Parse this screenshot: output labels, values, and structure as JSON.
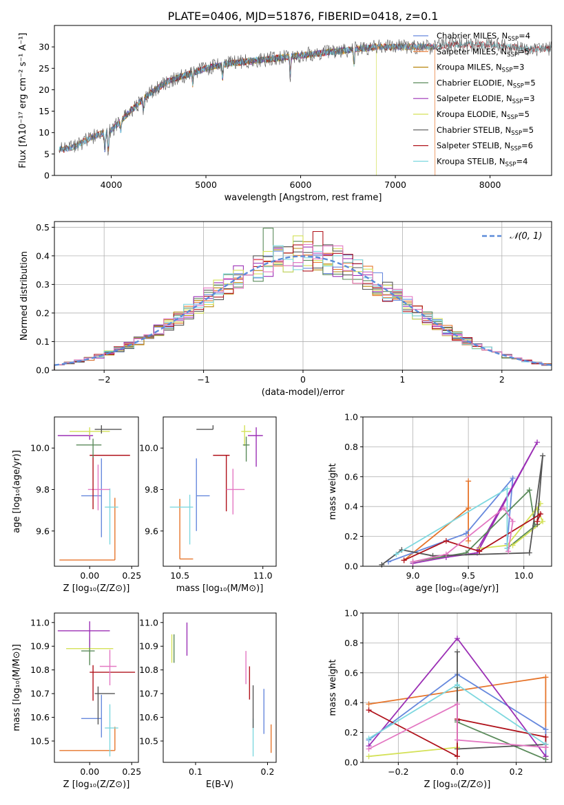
{
  "figure": {
    "title": "PLATE=0406, MJD=51876, FIBERID=0418, z=0.1"
  },
  "colors": {
    "Chabrier MILES": "#6688dd",
    "Salpeter MILES": "#e6742a",
    "Kroupa MILES": "#b8860b",
    "Chabrier ELODIE": "#5a8a5a",
    "Salpeter ELODIE": "#9b2fb5",
    "Kroupa ELODIE": "#d4e157",
    "Chabrier STELIB": "#555555",
    "Salpeter STELIB": "#b0121b",
    "Kroupa STELIB": "#7ed8df",
    "pink": "#e377c2",
    "gauss": "#5b8bd9"
  },
  "chart_data": [
    {
      "type": "line",
      "id": "spectrum",
      "xlabel": "wavelength [Angstrom, rest frame]",
      "ylabel": "Flux [fλ10⁻¹⁷ erg cm⁻² s⁻¹ A⁻¹]",
      "xlim": [
        3400,
        8650
      ],
      "ylim": [
        0,
        35
      ],
      "xticks": [
        4000,
        5000,
        6000,
        7000,
        8000
      ],
      "yticks": [
        0,
        5,
        10,
        15,
        20,
        25,
        30
      ],
      "continuum": {
        "x": [
          3450,
          3600,
          3800,
          4000,
          4200,
          4400,
          4600,
          4800,
          5000,
          5200,
          5400,
          5600,
          5800,
          6000,
          6200,
          6400,
          6600,
          6800,
          7000,
          7200,
          7400,
          7600,
          7800,
          8000,
          8200,
          8400
        ],
        "y": [
          6,
          6.5,
          9,
          10.5,
          15,
          19,
          22,
          23.5,
          25,
          26,
          26.5,
          27,
          27.5,
          28,
          28.5,
          29,
          29.5,
          30,
          30,
          30,
          30,
          30.5,
          30.5,
          30.5,
          30,
          29.5
        ]
      },
      "series": [
        {
          "name": "Chabrier MILES",
          "label": "Chabrier MILES, N",
          "sub": "SSP",
          "count": "=4",
          "range": [
            3450,
            7420
          ]
        },
        {
          "name": "Salpeter MILES",
          "label": "Salpeter MILES, N",
          "sub": "SSP",
          "count": "=5",
          "range": [
            3450,
            7420
          ]
        },
        {
          "name": "Kroupa MILES",
          "label": "Kroupa MILES, N",
          "sub": "SSP",
          "count": "=3",
          "range": [
            3450,
            7420
          ]
        },
        {
          "name": "Chabrier ELODIE",
          "label": "Chabrier ELODIE, N",
          "sub": "SSP",
          "count": "=5",
          "range": [
            3900,
            6800
          ]
        },
        {
          "name": "Salpeter ELODIE",
          "label": "Salpeter ELODIE, N",
          "sub": "SSP",
          "count": "=3",
          "range": [
            3900,
            6800
          ]
        },
        {
          "name": "Kroupa ELODIE",
          "label": "Kroupa ELODIE, N",
          "sub": "SSP",
          "count": "=5",
          "range": [
            3900,
            6800
          ]
        },
        {
          "name": "Chabrier STELIB",
          "label": "Chabrier STELIB, N",
          "sub": "SSP",
          "count": "=5",
          "range": [
            3450,
            8650
          ]
        },
        {
          "name": "Salpeter STELIB",
          "label": "Salpeter STELIB, N",
          "sub": "SSP",
          "count": "=6",
          "range": [
            3450,
            8650
          ]
        },
        {
          "name": "Kroupa STELIB",
          "label": "Kroupa STELIB, N",
          "sub": "SSP",
          "count": "=4",
          "range": [
            3450,
            8650
          ]
        }
      ]
    },
    {
      "type": "histogram",
      "id": "residuals",
      "xlabel": "(data-model)/error",
      "ylabel": "Normed distribution",
      "xlim": [
        -2.5,
        2.5
      ],
      "ylim": [
        0,
        0.52
      ],
      "xticks": [
        -2,
        -1,
        0,
        1,
        2
      ],
      "yticks": [
        0.0,
        0.1,
        0.2,
        0.3,
        0.4,
        0.5
      ],
      "legend": "$\\mathcal{N}(0,1)$",
      "bin_width": 0.1,
      "peaks": {
        "Chabrier ELODIE": [
          -0.35,
          0.497
        ],
        "Salpeter STELIB": [
          0.15,
          0.485
        ],
        "Kroupa ELODIE": [
          -0.05,
          0.47
        ],
        "pink": [
          0.35,
          0.435
        ]
      }
    },
    {
      "type": "errorbar",
      "id": "age_vs_Z",
      "xlabel": "Z [log₁₀(Z/Z⊙)]",
      "ylabel": "age [log₁₀(age/yr)]",
      "xlim": [
        -0.21,
        0.29
      ],
      "ylim": [
        9.43,
        10.15
      ],
      "xticks": [
        0.0,
        0.25
      ],
      "yticks": [
        9.6,
        9.8,
        10.0
      ],
      "points": [
        {
          "c": "Salpeter MILES",
          "x": 0.15,
          "xe": [
            0.33,
            0
          ],
          "y": 9.46,
          "ye": [
            0,
            0.3
          ]
        },
        {
          "c": "Chabrier MILES",
          "x": 0.07,
          "xe": [
            0.12,
            0
          ],
          "y": 9.77,
          "ye": [
            0.2,
            0.18
          ]
        },
        {
          "c": "Kroupa STELIB",
          "x": 0.12,
          "xe": [
            0.03,
            0.05
          ],
          "y": 9.715,
          "ye": [
            0.18,
            0.09
          ]
        },
        {
          "c": "pink",
          "x": 0.05,
          "xe": [
            0.06,
            0.07
          ],
          "y": 9.8,
          "ye": [
            0.1,
            0.12
          ]
        },
        {
          "c": "Salpeter STELIB",
          "x": 0.02,
          "xe": [
            0.02,
            0.22
          ],
          "y": 9.965,
          "ye": [
            0.26,
            0
          ]
        },
        {
          "c": "Chabrier ELODIE",
          "x": 0.02,
          "xe": [
            0.1,
            0.05
          ],
          "y": 10.015,
          "ye": [
            0.06,
            0.03
          ]
        },
        {
          "c": "Salpeter ELODIE",
          "x": 0.0,
          "xe": [
            0.19,
            0.02
          ],
          "y": 10.06,
          "ye": [
            0.02,
            0.02
          ]
        },
        {
          "c": "Kroupa ELODIE",
          "x": 0.0,
          "xe": [
            0.12,
            0.12
          ],
          "y": 10.08,
          "ye": [
            0.02,
            0.02
          ]
        },
        {
          "c": "Chabrier STELIB",
          "x": 0.07,
          "xe": [
            0.04,
            0.12
          ],
          "y": 10.09,
          "ye": [
            0.02,
            0.02
          ]
        }
      ]
    },
    {
      "type": "errorbar",
      "id": "age_vs_mass",
      "xlabel": "mass [log₁₀(M/M⊙)]",
      "xlim": [
        10.4,
        11.08
      ],
      "ylim": [
        9.43,
        10.15
      ],
      "xticks": [
        10.5,
        11.0
      ],
      "yticks": [
        9.6,
        9.8,
        10.0
      ],
      "points": [
        {
          "c": "Salpeter MILES",
          "x": 10.5,
          "xe": [
            0,
            0.08
          ],
          "y": 9.465,
          "ye": [
            0,
            0.29
          ]
        },
        {
          "c": "Kroupa STELIB",
          "x": 10.56,
          "xe": [
            0.12,
            0.02
          ],
          "y": 9.715,
          "ye": [
            0.18,
            0.06
          ]
        },
        {
          "c": "Chabrier MILES",
          "x": 10.6,
          "xe": [
            0,
            0.08
          ],
          "y": 9.77,
          "ye": [
            0.17,
            0.18
          ]
        },
        {
          "c": "Salpeter STELIB",
          "x": 10.78,
          "xe": [
            0.08,
            0.02
          ],
          "y": 9.965,
          "ye": [
            0.27,
            0
          ]
        },
        {
          "c": "pink",
          "x": 10.82,
          "xe": [
            0.04,
            0.07
          ],
          "y": 9.8,
          "ye": [
            0.12,
            0.1
          ]
        },
        {
          "c": "Chabrier STELIB",
          "x": 10.7,
          "xe": [
            0.1,
            0
          ],
          "y": 10.09,
          "ye": [
            0,
            0.02
          ]
        },
        {
          "c": "Kroupa ELODIE",
          "x": 10.89,
          "xe": [
            0.02,
            0.04
          ],
          "y": 10.08,
          "ye": [
            0.07,
            0.03
          ]
        },
        {
          "c": "Chabrier ELODIE",
          "x": 10.9,
          "xe": [
            0.02,
            0.02
          ],
          "y": 10.015,
          "ye": [
            0.08,
            0.04
          ]
        },
        {
          "c": "Salpeter ELODIE",
          "x": 10.96,
          "xe": [
            0.05,
            0.04
          ],
          "y": 10.06,
          "ye": [
            0.15,
            0.04
          ]
        }
      ]
    },
    {
      "type": "line",
      "id": "weight_vs_age",
      "xlabel": "age [log₁₀(age/yr)]",
      "ylabel": "mass weight",
      "xlim": [
        8.55,
        10.25
      ],
      "ylim": [
        0,
        1.0
      ],
      "xticks": [
        9.0,
        9.5,
        10.0
      ],
      "yticks": [
        0.0,
        0.2,
        0.4,
        0.6,
        0.8,
        1.0
      ],
      "series": [
        {
          "c": "Salpeter MILES",
          "x": [
            8.92,
            9.5,
            9.5,
            9.5
          ],
          "y": [
            0.04,
            0.39,
            0.57,
            0.17
          ]
        },
        {
          "c": "Chabrier MILES",
          "x": [
            8.78,
            9.48,
            9.9,
            9.85
          ],
          "y": [
            0.03,
            0.22,
            0.59,
            0.15
          ]
        },
        {
          "c": "Salpeter ELODIE",
          "x": [
            9.0,
            9.3,
            9.58,
            10.12,
            9.58
          ],
          "y": [
            0.02,
            0.06,
            0.09,
            0.83,
            0.11
          ]
        },
        {
          "c": "Chabrier ELODIE",
          "x": [
            9.0,
            9.48,
            10.05,
            10.1,
            9.85
          ],
          "y": [
            0.03,
            0.09,
            0.51,
            0.27,
            0.12
          ]
        },
        {
          "c": "Kroupa ELODIE",
          "x": [
            9.6,
            9.85,
            10.15,
            10.12,
            10.17,
            9.9
          ],
          "y": [
            0.12,
            0.14,
            0.42,
            0.38,
            0.3,
            0.14
          ]
        },
        {
          "c": "Chabrier STELIB",
          "x": [
            8.72,
            8.9,
            9.18,
            10.05,
            10.17,
            10.12
          ],
          "y": [
            0.01,
            0.11,
            0.07,
            0.09,
            0.74,
            0.28
          ]
        },
        {
          "c": "Salpeter STELIB",
          "x": [
            8.92,
            9.3,
            9.6,
            10.15,
            10.12
          ],
          "y": [
            0.04,
            0.17,
            0.1,
            0.35,
            0.3
          ]
        },
        {
          "c": "Kroupa STELIB",
          "x": [
            8.85,
            9.85,
            9.85
          ],
          "y": [
            0.08,
            0.52,
            0.12
          ]
        },
        {
          "c": "pink",
          "x": [
            9.0,
            9.3,
            9.82,
            9.9,
            9.86
          ],
          "y": [
            0.03,
            0.08,
            0.39,
            0.3,
            0.1
          ]
        }
      ]
    },
    {
      "type": "errorbar",
      "id": "mass_vs_Z",
      "xlabel": "Z [log₁₀(Z/Z⊙)]",
      "ylabel": "mass [log₁₀(M/M⊙)]",
      "xlim": [
        -0.21,
        0.29
      ],
      "ylim": [
        10.41,
        11.04
      ],
      "xticks": [
        0.0,
        0.25
      ],
      "yticks": [
        10.5,
        10.6,
        10.7,
        10.8,
        10.9,
        11.0
      ],
      "points": [
        {
          "c": "Salpeter MILES",
          "x": 0.15,
          "xe": [
            0.33,
            0
          ],
          "y": 10.46,
          "ye": [
            0,
            0.1
          ]
        },
        {
          "c": "Chabrier MILES",
          "x": 0.07,
          "xe": [
            0.12,
            0
          ],
          "y": 10.595,
          "ye": [
            0.08,
            0.1
          ]
        },
        {
          "c": "Kroupa STELIB",
          "x": 0.12,
          "xe": [
            0.03,
            0.05
          ],
          "y": 10.555,
          "ye": [
            0.12,
            0.1
          ]
        },
        {
          "c": "Chabrier STELIB",
          "x": 0.05,
          "xe": [
            0.02,
            0.1
          ],
          "y": 10.7,
          "ye": [
            0.13,
            0.03
          ]
        },
        {
          "c": "Salpeter STELIB",
          "x": 0.02,
          "xe": [
            0.02,
            0.25
          ],
          "y": 10.79,
          "ye": [
            0.12,
            0.03
          ]
        },
        {
          "c": "pink",
          "x": 0.12,
          "xe": [
            0.06,
            0.04
          ],
          "y": 10.815,
          "ye": [
            0.08,
            0.07
          ]
        },
        {
          "c": "Kroupa ELODIE",
          "x": 0.0,
          "xe": [
            0.14,
            0.14
          ],
          "y": 10.89,
          "ye": [
            0.05,
            0.05
          ]
        },
        {
          "c": "Chabrier ELODIE",
          "x": 0.0,
          "xe": [
            0.05,
            0.03
          ],
          "y": 10.88,
          "ye": [
            0.06,
            0.05
          ]
        },
        {
          "c": "Salpeter ELODIE",
          "x": 0.0,
          "xe": [
            0.19,
            0.12
          ],
          "y": 10.965,
          "ye": [
            0.07,
            0.04
          ]
        }
      ]
    },
    {
      "type": "errorbar",
      "id": "mass_vs_ebv",
      "xlabel": "E(B-V)",
      "xlim": [
        0.055,
        0.212
      ],
      "ylim": [
        10.41,
        11.04
      ],
      "xticks": [
        0.1,
        0.2
      ],
      "yticks": [
        10.5,
        10.6,
        10.7,
        10.8,
        10.9,
        11.0
      ],
      "points": [
        {
          "c": "Salpeter MILES",
          "x": 0.205,
          "y": 10.51,
          "ye": [
            0.06,
            0.06
          ]
        },
        {
          "c": "Chabrier MILES",
          "x": 0.195,
          "y": 10.62,
          "ye": [
            0.09,
            0.1
          ]
        },
        {
          "c": "Kroupa STELIB",
          "x": 0.18,
          "y": 10.515,
          "ye": [
            0.08,
            0.08
          ]
        },
        {
          "c": "Chabrier STELIB",
          "x": 0.18,
          "y": 10.645,
          "ye": [
            0.09,
            0.09
          ]
        },
        {
          "c": "Salpeter STELIB",
          "x": 0.175,
          "y": 10.745,
          "ye": [
            0.07,
            0.07
          ]
        },
        {
          "c": "pink",
          "x": 0.17,
          "y": 10.81,
          "ye": [
            0.07,
            0.07
          ]
        },
        {
          "c": "Salpeter ELODIE",
          "x": 0.088,
          "y": 10.93,
          "ye": [
            0.07,
            0.07
          ]
        },
        {
          "c": "Chabrier ELODIE",
          "x": 0.07,
          "y": 10.89,
          "ye": [
            0.06,
            0.06
          ]
        },
        {
          "c": "Kroupa ELODIE",
          "x": 0.067,
          "y": 10.89,
          "ye": [
            0.06,
            0.06
          ]
        }
      ]
    },
    {
      "type": "line",
      "id": "weight_vs_Z",
      "xlabel": "Z [log₁₀(Z/Z⊙)]",
      "ylabel": "mass weight",
      "xlim": [
        -0.32,
        0.32
      ],
      "ylim": [
        0,
        1.0
      ],
      "xticks": [
        -0.2,
        0.0,
        0.2
      ],
      "yticks": [
        0.0,
        0.2,
        0.4,
        0.6,
        0.8,
        1.0
      ],
      "series": [
        {
          "c": "Salpeter MILES",
          "x": [
            -0.3,
            0.3,
            0.3
          ],
          "y": [
            0.39,
            0.57,
            0.04
          ]
        },
        {
          "c": "Chabrier MILES",
          "x": [
            -0.3,
            0.0,
            0.3,
            0.3
          ],
          "y": [
            0.15,
            0.59,
            0.22,
            0.04
          ]
        },
        {
          "c": "Salpeter ELODIE",
          "x": [
            -0.3,
            0.0,
            0.3,
            0.3
          ],
          "y": [
            0.11,
            0.83,
            0.04,
            0.02
          ]
        },
        {
          "c": "Chabrier ELODIE",
          "x": [
            0.0,
            0.0,
            0.3
          ],
          "y": [
            0.5,
            0.27,
            0.02
          ]
        },
        {
          "c": "Kroupa ELODIE",
          "x": [
            -0.3,
            0.0
          ],
          "y": [
            0.04,
            0.1
          ]
        },
        {
          "c": "Chabrier STELIB",
          "x": [
            0.0,
            0.0,
            0.0,
            0.3
          ],
          "y": [
            0.74,
            0.28,
            0.09,
            0.12
          ]
        },
        {
          "c": "Salpeter STELIB",
          "x": [
            -0.3,
            0.0,
            0.0,
            0.3,
            0.3
          ],
          "y": [
            0.35,
            0.04,
            0.29,
            0.17,
            0.1
          ]
        },
        {
          "c": "Kroupa STELIB",
          "x": [
            -0.3,
            0.0,
            0.3
          ],
          "y": [
            0.16,
            0.52,
            0.12
          ]
        },
        {
          "c": "pink",
          "x": [
            -0.3,
            0.0,
            0.0,
            0.3
          ],
          "y": [
            0.09,
            0.39,
            0.15,
            0.1
          ]
        }
      ]
    }
  ]
}
